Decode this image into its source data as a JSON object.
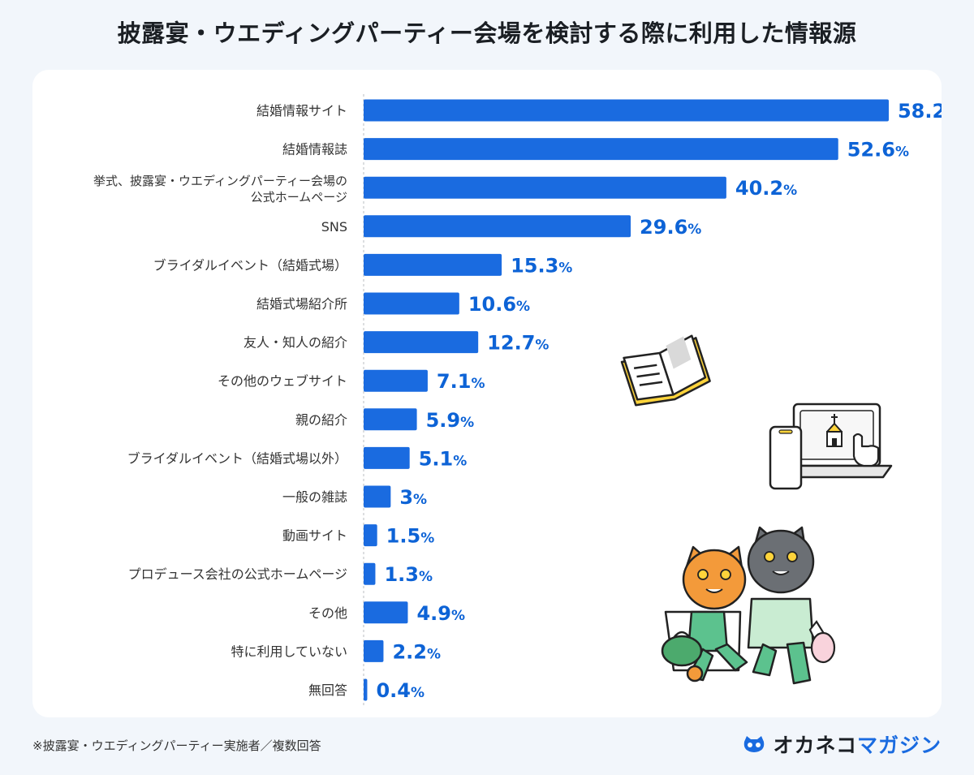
{
  "title": "披露宴・ウエディングパーティー会場を検討する際に利用した情報源",
  "footnote": "※披露宴・ウエディングパーティー実施者／複数回答",
  "logo": {
    "part1": "オカネコ",
    "part2": "マガジン"
  },
  "colors": {
    "bar": "#1a6be0",
    "value": "#0d63d6",
    "label": "#333333",
    "background": "#f2f6fb",
    "panel": "#ffffff"
  },
  "chart_data": {
    "type": "bar",
    "orientation": "horizontal",
    "unit": "%",
    "xlim": [
      0,
      60
    ],
    "categories": [
      [
        "結婚情報サイト"
      ],
      [
        "結婚情報誌"
      ],
      [
        "挙式、披露宴・ウエディングパーティー会場の",
        "公式ホームページ"
      ],
      [
        "SNS"
      ],
      [
        "ブライダルイベント（結婚式場）"
      ],
      [
        "結婚式場紹介所"
      ],
      [
        "友人・知人の紹介"
      ],
      [
        "その他のウェブサイト"
      ],
      [
        "親の紹介"
      ],
      [
        "ブライダルイベント（結婚式場以外）"
      ],
      [
        "一般の雑誌"
      ],
      [
        "動画サイト"
      ],
      [
        "プロデュース会社の公式ホームページ"
      ],
      [
        "その他"
      ],
      [
        "特に利用していない"
      ],
      [
        "無回答"
      ]
    ],
    "values": [
      58.2,
      52.6,
      40.2,
      29.6,
      15.3,
      10.6,
      12.7,
      7.1,
      5.9,
      5.1,
      3,
      1.5,
      1.3,
      4.9,
      2.2,
      0.4
    ],
    "value_labels": [
      "58.2",
      "52.6",
      "40.2",
      "29.6",
      "15.3",
      "10.6",
      "12.7",
      "7.1",
      "5.9",
      "5.1",
      "3",
      "1.5",
      "1.3",
      "4.9",
      "2.2",
      "0.4"
    ]
  }
}
